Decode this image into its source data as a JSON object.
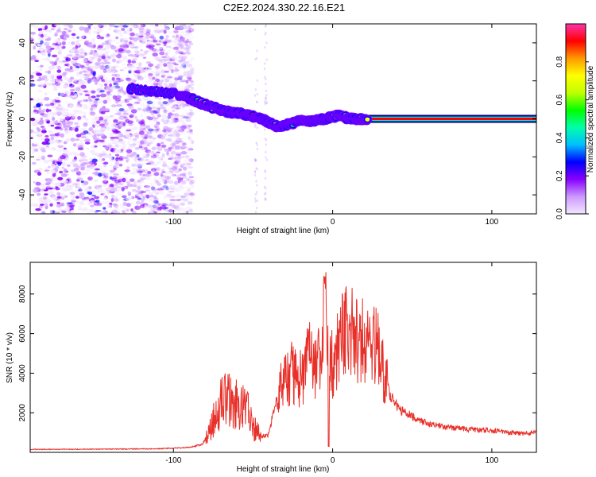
{
  "title": "C2E2.2024.330.22.16.E21",
  "chart_data": [
    {
      "type": "heatmap",
      "xlabel": "Height of straight line (km)",
      "ylabel": "Frequency (Hz)",
      "xlim": [
        -190,
        128
      ],
      "ylim": [
        -50,
        50
      ],
      "x_ticks": [
        -100,
        0,
        100
      ],
      "y_ticks": [
        -40,
        -20,
        0,
        20,
        40
      ],
      "colorbar": {
        "label": "Normalized spectral amplitude",
        "range": [
          0,
          1
        ],
        "ticks": [
          0.0,
          0.2,
          0.4,
          0.6,
          0.8
        ],
        "colormap": [
          "#f2e6ff",
          "#cc99ff",
          "#8800ff",
          "#0000ff",
          "#00bfff",
          "#00ffaa",
          "#00ff00",
          "#bfff00",
          "#ffff00",
          "#ff9900",
          "#ff0000",
          "#ff33aa"
        ]
      },
      "noise_region_x": [
        -190,
        -88
      ],
      "ridge": {
        "x": [
          -128,
          -118,
          -108,
          -98,
          -90,
          -82,
          -75,
          -68,
          -60,
          -52,
          -45,
          -40,
          -35,
          -28,
          -20,
          -12,
          -5,
          0,
          5,
          10,
          20,
          128
        ],
        "y": [
          16,
          15,
          14,
          13,
          11,
          8,
          6,
          4,
          3,
          2,
          0,
          -2,
          -4,
          -3,
          -1,
          -1,
          0,
          1,
          2,
          0,
          0,
          0
        ]
      }
    },
    {
      "type": "line",
      "xlabel": "Height of straight line (km)",
      "ylabel": "SNR (10 * v/v)",
      "xlim": [
        -190,
        128
      ],
      "ylim": [
        0,
        9600
      ],
      "x_ticks": [
        -100,
        0,
        100
      ],
      "y_ticks": [
        2000,
        4000,
        6000,
        8000
      ],
      "color": "#e8302a",
      "series": [
        {
          "x": [
            -190,
            -150,
            -110,
            -90,
            -82,
            -78,
            -74,
            -70,
            -66,
            -62,
            -58,
            -55,
            -52,
            -50,
            -47,
            -44,
            -40,
            -36,
            -32,
            -28,
            -25,
            -22,
            -18,
            -15,
            -12,
            -8,
            -5,
            -2,
            0,
            2,
            4,
            6,
            8,
            10,
            13,
            16,
            20,
            24,
            28,
            32,
            35,
            38,
            42,
            46,
            50,
            55,
            60,
            65,
            70,
            80,
            90,
            100,
            110,
            120,
            128
          ],
          "y": [
            150,
            160,
            180,
            250,
            400,
            900,
            1800,
            2600,
            3000,
            2500,
            2200,
            2400,
            1800,
            1300,
            1000,
            800,
            900,
            2500,
            3400,
            3800,
            4100,
            3600,
            4000,
            5000,
            4200,
            4600,
            6000,
            5200,
            4400,
            5000,
            5200,
            6000,
            6400,
            5800,
            6000,
            5700,
            5600,
            5800,
            5400,
            4200,
            3200,
            2600,
            2200,
            2000,
            1800,
            1600,
            1450,
            1400,
            1300,
            1200,
            1150,
            1100,
            1000,
            950,
            1000
          ]
        }
      ]
    }
  ]
}
